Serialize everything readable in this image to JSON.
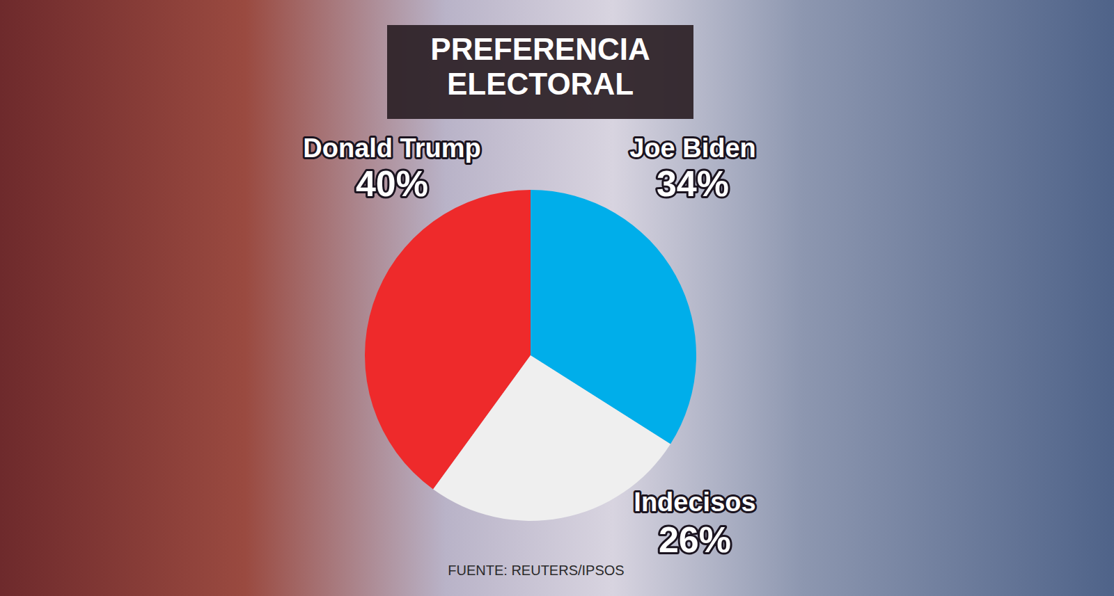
{
  "chart_data": {
    "type": "pie",
    "title": "PREFERENCIA ELECTORAL",
    "categories": [
      "Donald Trump",
      "Joe Biden",
      "Indecisos"
    ],
    "values": [
      40,
      34,
      26
    ],
    "value_labels": [
      "40%",
      "34%",
      "26%"
    ],
    "colors": [
      "#ee2a2b",
      "#00aeea",
      "#efefef"
    ],
    "data_labels": true,
    "source": "FUENTE: REUTERS/IPSOS"
  }
}
